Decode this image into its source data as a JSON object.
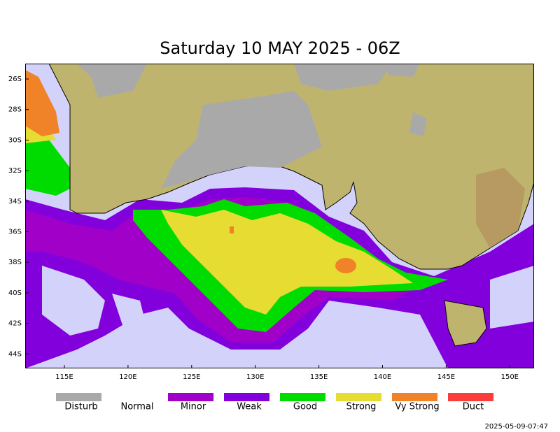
{
  "title": "Saturday 10 MAY 2025 - 06Z",
  "x_axis_labels": [
    "115E",
    "120E",
    "125E",
    "130E",
    "135E",
    "140E",
    "145E",
    "150E"
  ],
  "y_axis_labels": [
    "26S",
    "28S",
    "30S",
    "32S",
    "34S",
    "36S",
    "38S",
    "40S",
    "42S",
    "44S"
  ],
  "legend": [
    {
      "label": "Disturb",
      "color": "#a9a9a9"
    },
    {
      "label": "Normal",
      "color": "#ffffff"
    },
    {
      "label": "Minor",
      "color": "#a000c8"
    },
    {
      "label": "Weak",
      "color": "#8200dc"
    },
    {
      "label": "Good",
      "color": "#00dc00"
    },
    {
      "label": "Strong",
      "color": "#e6dc32"
    },
    {
      "label": "Vy Strong",
      "color": "#f08228"
    },
    {
      "label": "Duct",
      "color": "#fa3c3c"
    }
  ],
  "timestamp": "2025-05-09-07:47"
}
